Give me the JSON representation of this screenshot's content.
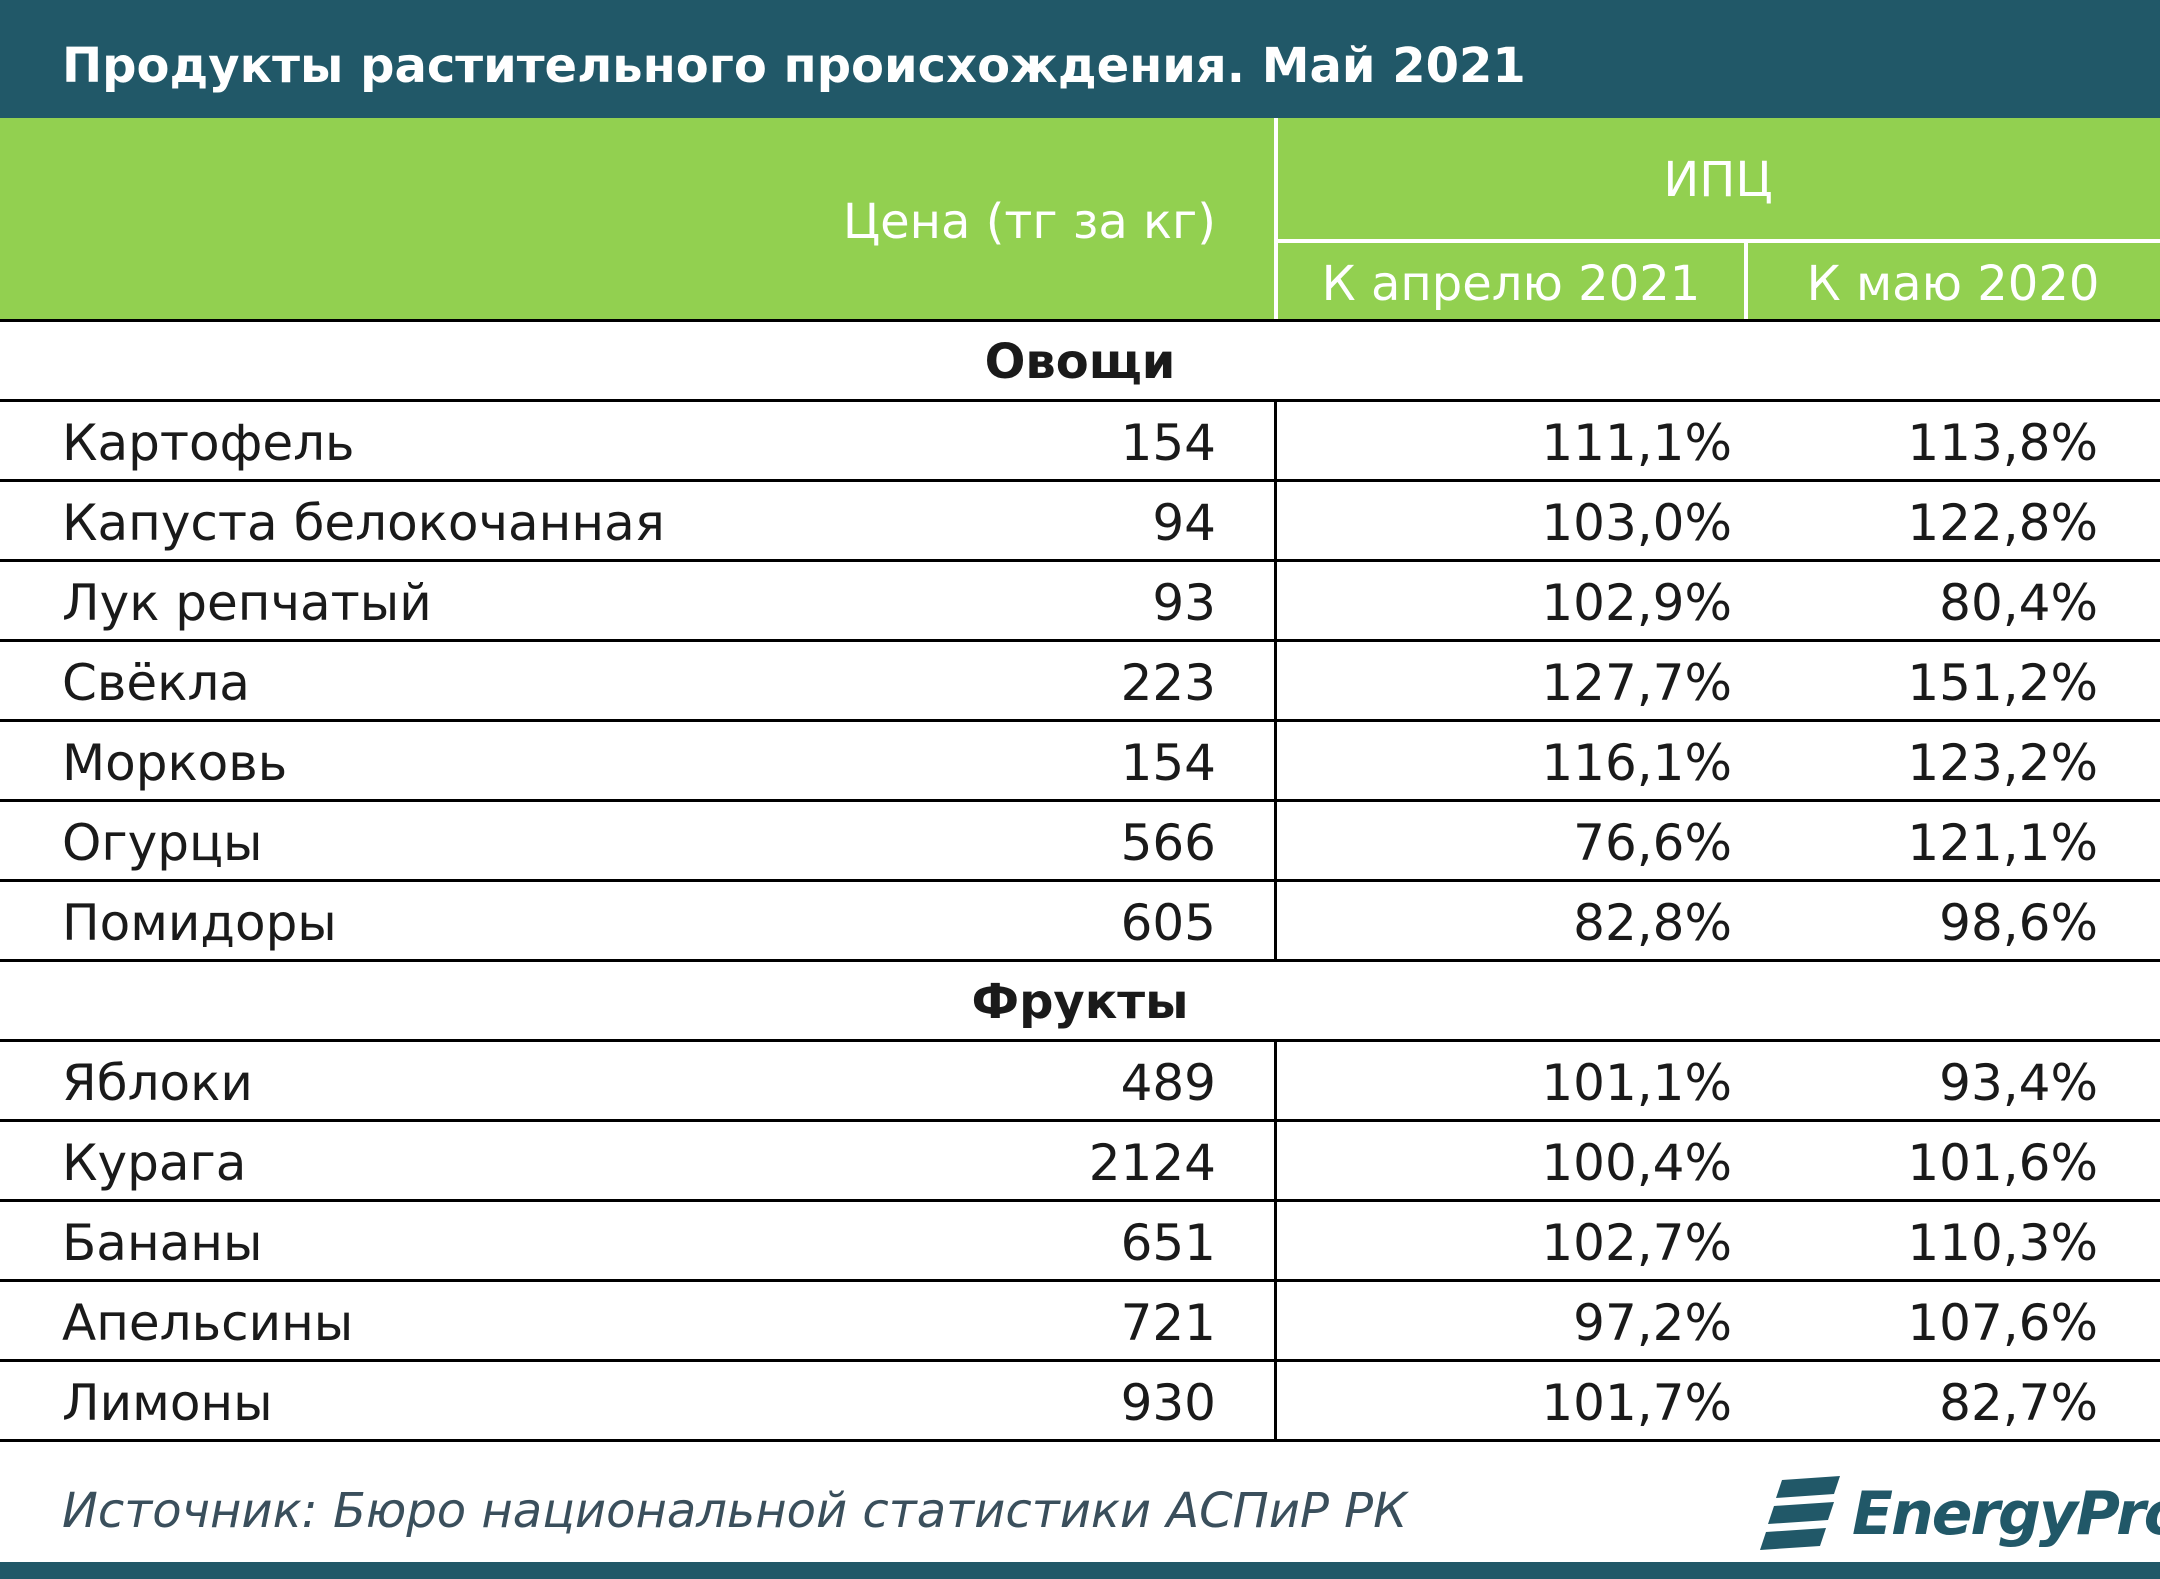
{
  "chart_data": {
    "type": "table",
    "title": "Продукты растительного происхождения. Май 2021",
    "columns": {
      "price": "Цена (тг за кг)",
      "ipc_group": "ИПЦ",
      "to_april_2021": "К апрелю 2021",
      "to_may_2020": "К маю 2020"
    },
    "sections": [
      {
        "name": "Овощи",
        "rows": [
          {
            "product": "Картофель",
            "price": "154",
            "to_april_2021": "111,1%",
            "to_may_2020": "113,8%"
          },
          {
            "product": "Капуста белокочанная",
            "price": "94",
            "to_april_2021": "103,0%",
            "to_may_2020": "122,8%"
          },
          {
            "product": "Лук репчатый",
            "price": "93",
            "to_april_2021": "102,9%",
            "to_may_2020": "80,4%"
          },
          {
            "product": "Свёкла",
            "price": "223",
            "to_april_2021": "127,7%",
            "to_may_2020": "151,2%"
          },
          {
            "product": "Морковь",
            "price": "154",
            "to_april_2021": "116,1%",
            "to_may_2020": "123,2%"
          },
          {
            "product": "Огурцы",
            "price": "566",
            "to_april_2021": "76,6%",
            "to_may_2020": "121,1%"
          },
          {
            "product": "Помидоры",
            "price": "605",
            "to_april_2021": "82,8%",
            "to_may_2020": "98,6%"
          }
        ]
      },
      {
        "name": "Фрукты",
        "rows": [
          {
            "product": "Яблоки",
            "price": "489",
            "to_april_2021": "101,1%",
            "to_may_2020": "93,4%"
          },
          {
            "product": "Курага",
            "price": "2124",
            "to_april_2021": "100,4%",
            "to_may_2020": "101,6%"
          },
          {
            "product": "Бананы",
            "price": "651",
            "to_april_2021": "102,7%",
            "to_may_2020": "110,3%"
          },
          {
            "product": "Апельсины",
            "price": "721",
            "to_april_2021": "97,2%",
            "to_may_2020": "107,6%"
          },
          {
            "product": "Лимоны",
            "price": "930",
            "to_april_2021": "101,7%",
            "to_may_2020": "82,7%"
          }
        ]
      }
    ]
  },
  "footer": {
    "source": "Источник: Бюро национальной статистики АСПиР РК",
    "logo_text": "EnergyProm",
    "logo_icon": "energyprom-logo-icon"
  },
  "colors": {
    "title_bar": "#215868",
    "header": "#92d050",
    "header_text": "#ffffff",
    "source_text": "#3a4f5c"
  }
}
